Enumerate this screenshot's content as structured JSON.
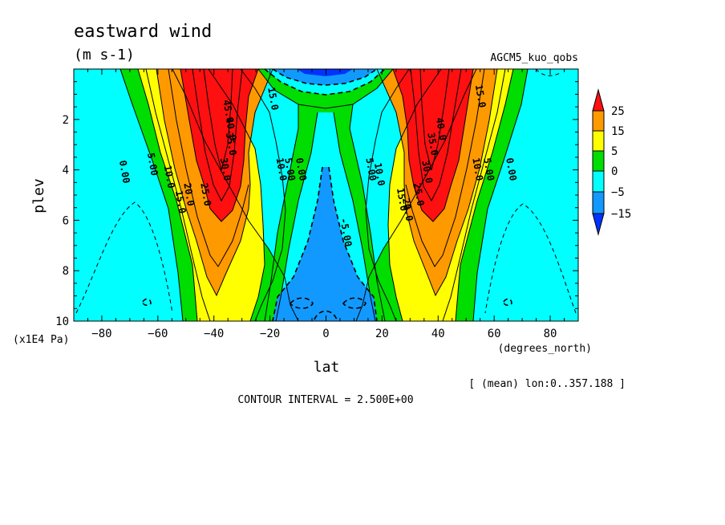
{
  "chart_data": {
    "type": "heatmap",
    "title": "eastward wind",
    "units": "(m s-1)",
    "run_label": "AGCM5_kuo_qobs",
    "xlabel": "lat",
    "x_unit_label": "(degrees_north)",
    "ylabel": "plev",
    "y_unit_label": "(x1E4 Pa)",
    "xlim": [
      -90,
      90
    ],
    "ylim": [
      0,
      10
    ],
    "y_inverted": true,
    "x_ticks": [
      -80,
      -60,
      -40,
      -20,
      0,
      20,
      40,
      60,
      80
    ],
    "y_ticks": [
      2,
      4,
      6,
      8,
      10
    ],
    "contour_interval_text": "CONTOUR INTERVAL = 2.500E+00",
    "mean_text": "[ (mean) lon:0..357.188 ]",
    "colorbar": {
      "labels": [
        "25",
        "15",
        "5",
        "0",
        "-5",
        "-15"
      ],
      "bands": [
        {
          "min": 25,
          "max": 50,
          "color": "#ff1010"
        },
        {
          "min": 15,
          "max": 25,
          "color": "#ff9900"
        },
        {
          "min": 5,
          "max": 15,
          "color": "#ffff00"
        },
        {
          "min": 0,
          "max": 5,
          "color": "#00dd00"
        },
        {
          "min": -5,
          "max": 0,
          "color": "#00ffff"
        },
        {
          "min": -15,
          "max": -5,
          "color": "#1199ff"
        },
        {
          "min": -30,
          "max": -15,
          "color": "#0033ff"
        }
      ]
    },
    "contour_labels": [
      {
        "text": "0.00",
        "lat": -73,
        "p": 4.1
      },
      {
        "text": "5.00",
        "lat": -63,
        "p": 3.8
      },
      {
        "text": "10.0",
        "lat": -57,
        "p": 4.3
      },
      {
        "text": "15.0",
        "lat": -53,
        "p": 5.3
      },
      {
        "text": "20.0",
        "lat": -50,
        "p": 5.0
      },
      {
        "text": "25.0",
        "lat": -44,
        "p": 5.0
      },
      {
        "text": "30.0",
        "lat": -37,
        "p": 4.0
      },
      {
        "text": "35.0",
        "lat": -35,
        "p": 3.0
      },
      {
        "text": "40.0",
        "lat": -35,
        "p": 2.4
      },
      {
        "text": "45.0",
        "lat": -36,
        "p": 1.7
      },
      {
        "text": "15.0",
        "lat": -20,
        "p": 1.2
      },
      {
        "text": "10.0",
        "lat": -17,
        "p": 4.0
      },
      {
        "text": "5.00",
        "lat": -14,
        "p": 4.0
      },
      {
        "text": "0.00",
        "lat": -10,
        "p": 4.0
      },
      {
        "text": "-5.00",
        "lat": 6,
        "p": 6.5
      },
      {
        "text": "5.00",
        "lat": 15,
        "p": 4.0
      },
      {
        "text": "10.0",
        "lat": 18,
        "p": 4.2
      },
      {
        "text": "15.0",
        "lat": 26,
        "p": 5.2
      },
      {
        "text": "20.0",
        "lat": 28,
        "p": 5.6
      },
      {
        "text": "25.0",
        "lat": 32,
        "p": 5.0
      },
      {
        "text": "30.0",
        "lat": 35,
        "p": 4.1
      },
      {
        "text": "35.0",
        "lat": 37,
        "p": 3.0
      },
      {
        "text": "40.0",
        "lat": 40,
        "p": 2.4
      },
      {
        "text": "10.0",
        "lat": 53,
        "p": 4.0
      },
      {
        "text": "5.00",
        "lat": 57,
        "p": 4.0
      },
      {
        "text": "0.00",
        "lat": 65,
        "p": 4.0
      },
      {
        "text": "15.0",
        "lat": 54,
        "p": 1.1
      }
    ]
  }
}
